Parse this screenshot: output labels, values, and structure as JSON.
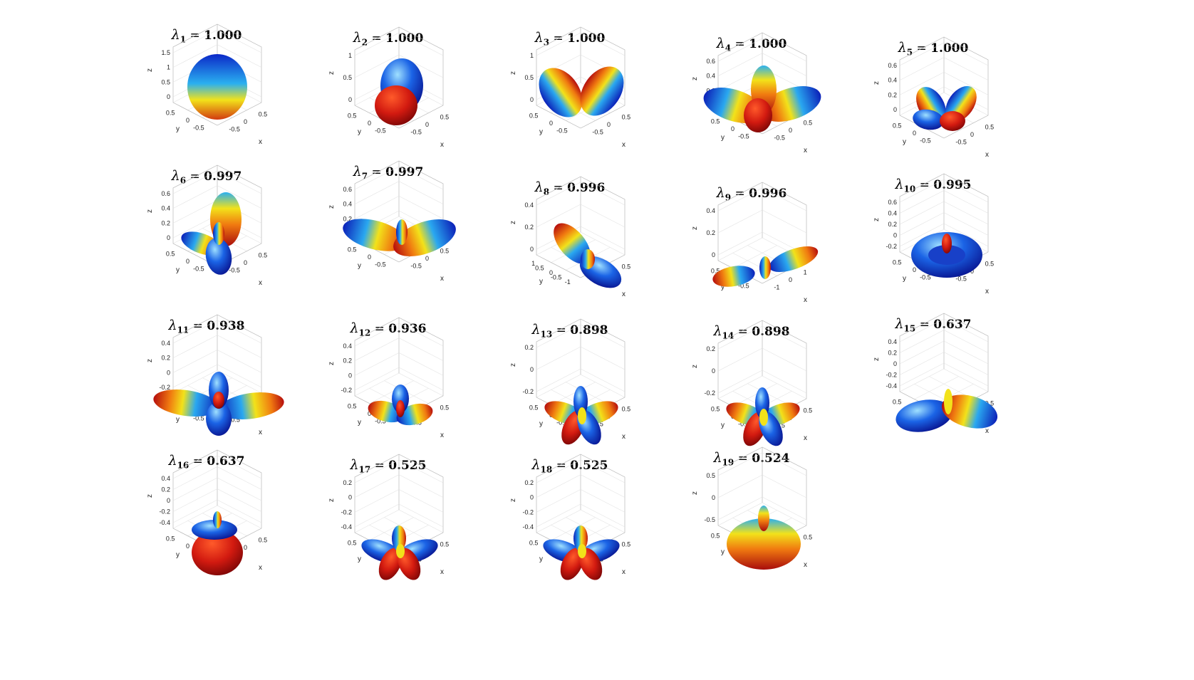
{
  "panels": [
    {
      "name": "λ",
      "sub": "1",
      "value": "1.000",
      "lobes": "sphere",
      "z_ticks": [
        "1.5",
        "1",
        "0.5",
        "0"
      ],
      "y_ticks": [
        "0.5",
        "0",
        "-0.5"
      ],
      "x_ticks": [
        "-0.5",
        "0",
        "0.5"
      ],
      "axis_labels": {
        "x": "x",
        "y": "y",
        "z": "z"
      }
    },
    {
      "name": "λ",
      "sub": "2",
      "value": "1.000",
      "lobes": "dumbbell-z",
      "z_ticks": [
        "1",
        "0.5",
        "0"
      ],
      "y_ticks": [
        "0.5",
        "0",
        "-0.5"
      ],
      "x_ticks": [
        "-0.5",
        "0",
        "0.5"
      ],
      "axis_labels": {
        "x": "x",
        "y": "y",
        "z": "z"
      }
    },
    {
      "name": "λ",
      "sub": "3",
      "value": "1.000",
      "lobes": "dumbbell-x",
      "z_ticks": [
        "1",
        "0.5",
        "0"
      ],
      "y_ticks": [
        "0.5",
        "0",
        "-0.5"
      ],
      "x_ticks": [
        "-0.5",
        "0",
        "0.5"
      ],
      "axis_labels": {
        "x": "x",
        "y": "y",
        "z": "z"
      }
    },
    {
      "name": "λ",
      "sub": "4",
      "value": "1.000",
      "lobes": "three",
      "z_ticks": [
        "0.6",
        "0.4",
        "0.2",
        "0"
      ],
      "y_ticks": [
        "0.5",
        "0",
        "-0.5"
      ],
      "x_ticks": [
        "-0.5",
        "0",
        "0.5"
      ],
      "axis_labels": {
        "x": "x",
        "y": "y",
        "z": "z"
      }
    },
    {
      "name": "λ",
      "sub": "5",
      "value": "1.000",
      "lobes": "four-small",
      "z_ticks": [
        "0.6",
        "0.4",
        "0.2",
        "0"
      ],
      "y_ticks": [
        "0.5",
        "0",
        "-0.5"
      ],
      "x_ticks": [
        "-0.5",
        "0",
        "0.5"
      ],
      "axis_labels": {
        "x": "x",
        "y": "y",
        "z": "z"
      }
    },
    {
      "name": "λ",
      "sub": "6",
      "value": "0.997",
      "lobes": "tri",
      "z_ticks": [
        "0.6",
        "0.4",
        "0.2",
        "0"
      ],
      "y_ticks": [
        "0.5",
        "0",
        "-0.5"
      ],
      "x_ticks": [
        "-0.5",
        "0",
        "0.5"
      ],
      "axis_labels": {
        "x": "x",
        "y": "y",
        "z": "z"
      }
    },
    {
      "name": "λ",
      "sub": "7",
      "value": "0.997",
      "lobes": "twisted",
      "z_ticks": [
        "0.6",
        "0.4",
        "0.2",
        "0"
      ],
      "y_ticks": [
        "0.5",
        "0",
        "-0.5"
      ],
      "x_ticks": [
        "-0.5",
        "0",
        "0.5"
      ],
      "axis_labels": {
        "x": "x",
        "y": "y",
        "z": "z"
      }
    },
    {
      "name": "λ",
      "sub": "8",
      "value": "0.996",
      "lobes": "diag",
      "z_ticks": [
        "0.4",
        "0.2",
        "0"
      ],
      "y_ticks": [
        "1",
        "0.5",
        "0",
        "-0.5",
        "-1"
      ],
      "x_ticks": [
        "-0.5",
        "0",
        "0.5"
      ],
      "axis_labels": {
        "x": "x",
        "y": "y",
        "z": "z"
      }
    },
    {
      "name": "λ",
      "sub": "9",
      "value": "0.996",
      "lobes": "long",
      "z_ticks": [
        "0.4",
        "0.2",
        "0"
      ],
      "y_ticks": [
        "0.5",
        "0",
        "-0.5"
      ],
      "x_ticks": [
        "-1",
        "0",
        "1"
      ],
      "axis_labels": {
        "x": "x",
        "y": "y",
        "z": "z"
      }
    },
    {
      "name": "λ",
      "sub": "10",
      "value": "0.995",
      "lobes": "torus",
      "z_ticks": [
        "0.6",
        "0.4",
        "0.2",
        "0",
        "-0.2"
      ],
      "y_ticks": [
        "0.5",
        "0",
        "-0.5"
      ],
      "x_ticks": [
        "-0.5",
        "0",
        "0.5"
      ],
      "axis_labels": {
        "x": "x",
        "y": "y",
        "z": "z"
      }
    },
    {
      "name": "λ",
      "sub": "11",
      "value": "0.938",
      "lobes": "cross-big",
      "z_ticks": [
        "0.4",
        "0.2",
        "0",
        "-0.2"
      ],
      "y_ticks": [
        "0.5",
        "0",
        "-0.5"
      ],
      "x_ticks": [
        "-0.5",
        "0",
        "0.5"
      ],
      "axis_labels": {
        "x": "x",
        "y": "y",
        "z": "z"
      }
    },
    {
      "name": "λ",
      "sub": "12",
      "value": "0.936",
      "lobes": "cross",
      "z_ticks": [
        "0.4",
        "0.2",
        "0",
        "-0.2"
      ],
      "y_ticks": [
        "0.5",
        "0",
        "-0.5"
      ],
      "x_ticks": [
        "-0.5",
        "0",
        "0.5"
      ],
      "axis_labels": {
        "x": "x",
        "y": "y",
        "z": "z"
      }
    },
    {
      "name": "λ",
      "sub": "13",
      "value": "0.898",
      "lobes": "flower",
      "z_ticks": [
        "0.2",
        "0",
        "-0.2"
      ],
      "y_ticks": [
        "0.5",
        "0",
        "-0.5"
      ],
      "x_ticks": [
        "-0.5",
        "0",
        "0.5"
      ],
      "axis_labels": {
        "x": "x",
        "y": "y",
        "z": "z"
      }
    },
    {
      "name": "λ",
      "sub": "14",
      "value": "0.898",
      "lobes": "flower",
      "z_ticks": [
        "0.2",
        "0",
        "-0.2"
      ],
      "y_ticks": [
        "0.5",
        "0",
        "-0.5"
      ],
      "x_ticks": [
        "-0.5",
        "0",
        "0.5"
      ],
      "axis_labels": {
        "x": "x",
        "y": "y",
        "z": "z"
      }
    },
    {
      "name": "λ",
      "sub": "15",
      "value": "0.637",
      "lobes": "dumbbell-diag",
      "z_ticks": [
        "0.4",
        "0.2",
        "0",
        "-0.2",
        "-0.4"
      ],
      "y_ticks": [
        "0.5",
        "0",
        "-0.5"
      ],
      "x_ticks": [
        "-0.5",
        "0",
        "0.5"
      ],
      "axis_labels": {
        "x": "x",
        "y": "y",
        "z": "z"
      }
    },
    {
      "name": "λ",
      "sub": "16",
      "value": "0.637",
      "lobes": "pear",
      "z_ticks": [
        "0.4",
        "0.2",
        "0",
        "-0.2",
        "-0.4"
      ],
      "y_ticks": [
        "0.5",
        "0",
        "-0.5"
      ],
      "x_ticks": [
        "-0.5",
        "0",
        "0.5"
      ],
      "axis_labels": {
        "x": "x",
        "y": "y",
        "z": "z"
      }
    },
    {
      "name": "λ",
      "sub": "17",
      "value": "0.525",
      "lobes": "flower5",
      "z_ticks": [
        "0.2",
        "0",
        "-0.2",
        "-0.4"
      ],
      "y_ticks": [
        "0.5",
        "0",
        "-0.5"
      ],
      "x_ticks": [
        "-0.5",
        "0",
        "0.5"
      ],
      "axis_labels": {
        "x": "x",
        "y": "y",
        "z": "z"
      }
    },
    {
      "name": "λ",
      "sub": "18",
      "value": "0.525",
      "lobes": "flower5",
      "z_ticks": [
        "0.2",
        "0",
        "-0.2",
        "-0.4"
      ],
      "y_ticks": [
        "0.5",
        "0",
        "-0.5"
      ],
      "x_ticks": [
        "-0.5",
        "0",
        "0.5"
      ],
      "axis_labels": {
        "x": "x",
        "y": "y",
        "z": "z"
      }
    },
    {
      "name": "λ",
      "sub": "19",
      "value": "0.524",
      "lobes": "disk",
      "z_ticks": [
        "0.5",
        "0",
        "-0.5"
      ],
      "y_ticks": [
        "0.5",
        "0",
        "-0.5"
      ],
      "x_ticks": [
        "-0.5",
        "0",
        "0.5"
      ],
      "axis_labels": {
        "x": "x",
        "y": "y",
        "z": "z"
      }
    }
  ],
  "colors": {
    "blue": "#0a1fbf",
    "cyan": "#2ab7f0",
    "yellow": "#f2e21a",
    "orange": "#f07a10",
    "red": "#b50d0d"
  }
}
